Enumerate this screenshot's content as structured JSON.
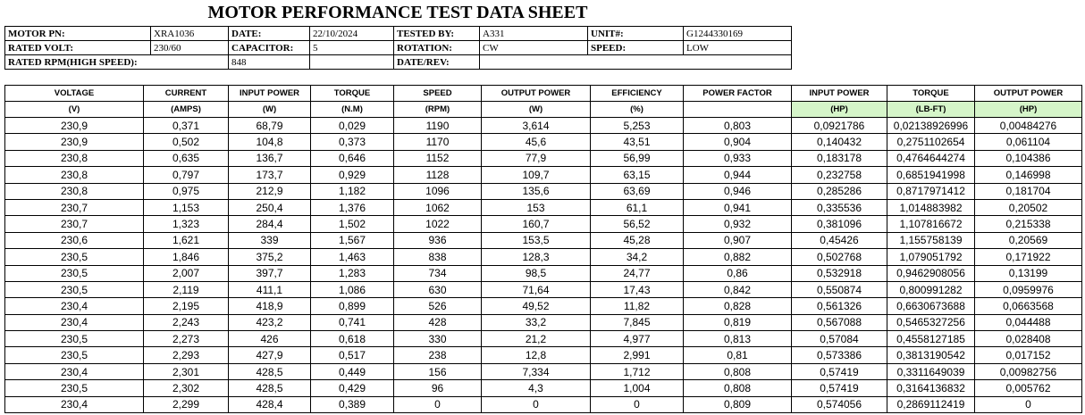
{
  "title": "MOTOR PERFORMANCE TEST DATA SHEET",
  "info": [
    {
      "label": "MOTOR PN:",
      "value": "XRA1036"
    },
    {
      "label": "DATE:",
      "value": "22/10/2024"
    },
    {
      "label": "TESTED BY:",
      "value": "A331"
    },
    {
      "label": "UNIT#:",
      "value": "G1244330169"
    },
    {
      "label": "RATED VOLT:",
      "value": "230/60"
    },
    {
      "label": "CAPACITOR:",
      "value": "5"
    },
    {
      "label": "ROTATION:",
      "value": "CW"
    },
    {
      "label": "SPEED:",
      "value": "LOW"
    },
    {
      "label": "RATED RPM(HIGH SPEED):",
      "value": "848"
    },
    {
      "label": "DATE/REV:"
    }
  ],
  "table": {
    "columns": [
      {
        "header": "VOLTAGE",
        "unit": "(V)"
      },
      {
        "header": "CURRENT",
        "unit": "(AMPS)"
      },
      {
        "header": "INPUT POWER",
        "unit": "(W)"
      },
      {
        "header": "TORQUE",
        "unit": "(N.M)"
      },
      {
        "header": "SPEED",
        "unit": "(RPM)"
      },
      {
        "header": "OUTPUT POWER",
        "unit": "(W)"
      },
      {
        "header": "EFFICIENCY",
        "unit": "(%)"
      },
      {
        "header": "POWER FACTOR"
      },
      {
        "header": "INPUT POWER",
        "unit": "(HP)"
      },
      {
        "header": "TORQUE",
        "unit": "(LB-FT)"
      },
      {
        "header": "OUTPUT POWER",
        "unit": "(HP)"
      }
    ],
    "rows": [
      [
        "230,9",
        "0,371",
        "68,79",
        "0,029",
        "1190",
        "3,614",
        "5,253",
        "0,803",
        "0,0921786",
        "0,02138926996",
        "0,00484276"
      ],
      [
        "230,9",
        "0,502",
        "104,8",
        "0,373",
        "1170",
        "45,6",
        "43,51",
        "0,904",
        "0,140432",
        "0,2751102654",
        "0,061104"
      ],
      [
        "230,8",
        "0,635",
        "136,7",
        "0,646",
        "1152",
        "77,9",
        "56,99",
        "0,933",
        "0,183178",
        "0,4764644274",
        "0,104386"
      ],
      [
        "230,8",
        "0,797",
        "173,7",
        "0,929",
        "1128",
        "109,7",
        "63,15",
        "0,944",
        "0,232758",
        "0,6851941998",
        "0,146998"
      ],
      [
        "230,8",
        "0,975",
        "212,9",
        "1,182",
        "1096",
        "135,6",
        "63,69",
        "0,946",
        "0,285286",
        "0,8717971412",
        "0,181704"
      ],
      [
        "230,7",
        "1,153",
        "250,4",
        "1,376",
        "1062",
        "153",
        "61,1",
        "0,941",
        "0,335536",
        "1,014883982",
        "0,20502"
      ],
      [
        "230,7",
        "1,323",
        "284,4",
        "1,502",
        "1022",
        "160,7",
        "56,52",
        "0,932",
        "0,381096",
        "1,107816672",
        "0,215338"
      ],
      [
        "230,6",
        "1,621",
        "339",
        "1,567",
        "936",
        "153,5",
        "45,28",
        "0,907",
        "0,45426",
        "1,155758139",
        "0,20569"
      ],
      [
        "230,5",
        "1,846",
        "375,2",
        "1,463",
        "838",
        "128,3",
        "34,2",
        "0,882",
        "0,502768",
        "1,079051792",
        "0,171922"
      ],
      [
        "230,5",
        "2,007",
        "397,7",
        "1,283",
        "734",
        "98,5",
        "24,77",
        "0,86",
        "0,532918",
        "0,9462908056",
        "0,13199"
      ],
      [
        "230,5",
        "2,119",
        "411,1",
        "1,086",
        "630",
        "71,64",
        "17,43",
        "0,842",
        "0,550874",
        "0,800991282",
        "0,0959976"
      ],
      [
        "230,4",
        "2,195",
        "418,9",
        "0,899",
        "526",
        "49,52",
        "11,82",
        "0,828",
        "0,561326",
        "0,6630673688",
        "0,0663568"
      ],
      [
        "230,4",
        "2,243",
        "423,2",
        "0,741",
        "428",
        "33,2",
        "7,845",
        "0,819",
        "0,567088",
        "0,5465327256",
        "0,044488"
      ],
      [
        "230,5",
        "2,273",
        "426",
        "0,618",
        "330",
        "21,2",
        "4,977",
        "0,813",
        "0,57084",
        "0,4558127185",
        "0,028408"
      ],
      [
        "230,5",
        "2,293",
        "427,9",
        "0,517",
        "238",
        "12,8",
        "2,991",
        "0,81",
        "0,573386",
        "0,3813190542",
        "0,017152"
      ],
      [
        "230,4",
        "2,301",
        "428,5",
        "0,449",
        "156",
        "7,334",
        "1,712",
        "0,808",
        "0,57419",
        "0,3311649039",
        "0,00982756"
      ],
      [
        "230,5",
        "2,302",
        "428,5",
        "0,429",
        "96",
        "4,3",
        "1,004",
        "0,808",
        "0,57419",
        "0,3164136832",
        "0,005762"
      ],
      [
        "230,4",
        "2,299",
        "428,4",
        "0,389",
        "0",
        "0",
        "0",
        "0,809",
        "0,574056",
        "0,2869112419",
        "0"
      ]
    ]
  }
}
